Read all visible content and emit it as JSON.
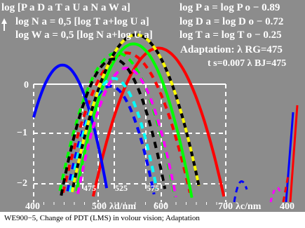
{
  "header": {
    "left_line1": "log [P a D a T a U a N a W a]",
    "left_line2": "log N a = 0,5 [log T a+log U a]",
    "left_line3": "log W a = 0,5 [log N a+log U a]",
    "right_line1": "log P a = log P o − 0.89",
    "right_line2": "log D a = log D o − 0.72",
    "right_line3": "log T a = log T o − 0.25",
    "adaptation": "Adaptation: λ RG=475",
    "ts": "t s=0.007   λ BJ=475"
  },
  "caption": "WE900−5, Change of PDT (LMS) in volour vision; Adaptation",
  "chart_data": {
    "type": "line",
    "x_ticks": [
      "400",
      "500",
      "600",
      "700",
      "400"
    ],
    "x_label_d": "λd/nm",
    "x_label_c": "λc/nm",
    "y_ticks": [
      "0",
      "−1",
      "−2"
    ],
    "xlim": [
      400,
      730
    ],
    "ylim": [
      -2.35,
      0.55
    ],
    "markers": [
      475,
      525,
      575
    ],
    "grid": true,
    "colors": {
      "background": "#8c8c8c",
      "P": "#ff0000",
      "D": "#00ff00",
      "T": "#0000ff",
      "U": "#ffff00",
      "N": "#ff00ff",
      "W": "#00ffff",
      "K": "#000000"
    },
    "series": [
      {
        "name": "P",
        "color": "#ff0000",
        "dashed": true,
        "peak_x": 545,
        "peak_y": 0.0,
        "width": 105,
        "style": "dash"
      },
      {
        "name": "P",
        "color": "#ff0000",
        "dashed": false,
        "peak_x": 595,
        "peak_y": 0.08,
        "width": 105,
        "style": "solid"
      },
      {
        "name": "D",
        "color": "#00ff00",
        "dashed": true,
        "peak_x": 530,
        "peak_y": 0.0,
        "width": 95,
        "style": "dash"
      },
      {
        "name": "D",
        "color": "#00ff00",
        "dashed": false,
        "peak_x": 556,
        "peak_y": 0.15,
        "width": 92,
        "style": "solid"
      },
      {
        "name": "T",
        "color": "#0000ff",
        "dashed": false,
        "peak_x": 445,
        "peak_y": -0.2,
        "width": 78,
        "style": "solid"
      },
      {
        "name": "T",
        "color": "#0000ff",
        "dashed": true,
        "peak_x": 520,
        "peak_y": -0.55,
        "width": 82,
        "style": "dash"
      },
      {
        "name": "N",
        "color": "#ff00ff",
        "dashed": true,
        "peak_x": 545,
        "peak_y": -0.25,
        "width": 85,
        "style": "dash"
      },
      {
        "name": "W",
        "color": "#00ffff",
        "dashed": true,
        "peak_x": 525,
        "peak_y": -0.42,
        "width": 80,
        "style": "dash"
      },
      {
        "name": "U",
        "color": "#ffff00",
        "dashed": true,
        "peak_x": 560,
        "peak_y": 0.3,
        "width": 100,
        "style": "yk"
      },
      {
        "name": "K",
        "color": "#000000",
        "dashed": true,
        "peak_x": 525,
        "peak_y": -0.1,
        "width": 88,
        "style": "dash"
      }
    ]
  }
}
